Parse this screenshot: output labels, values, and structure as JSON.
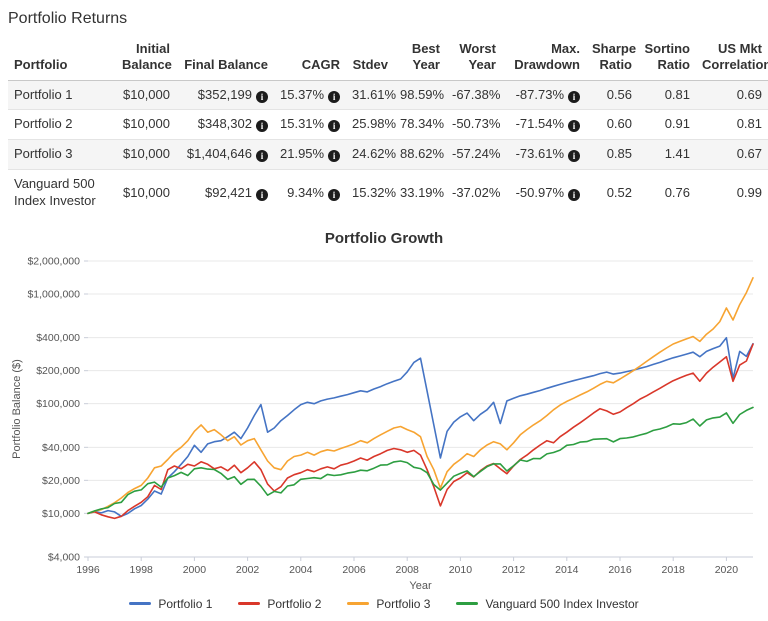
{
  "page": {
    "title": "Portfolio Returns"
  },
  "table": {
    "columns": [
      "Portfolio",
      "Initial Balance",
      "Final Balance",
      "CAGR",
      "Stdev",
      "Best Year",
      "Worst Year",
      "Max. Drawdown",
      "Sharpe Ratio",
      "Sortino Ratio",
      "US Mkt Correlation"
    ],
    "rows": [
      {
        "name": "Portfolio 1",
        "initial": "$10,000",
        "final": "$352,199",
        "cagr": "15.37%",
        "stdev": "31.61%",
        "best": "98.59%",
        "worst": "-67.38%",
        "maxdd": "-87.73%",
        "sharpe": "0.56",
        "sortino": "0.81",
        "uscorr": "0.69"
      },
      {
        "name": "Portfolio 2",
        "initial": "$10,000",
        "final": "$348,302",
        "cagr": "15.31%",
        "stdev": "25.98%",
        "best": "78.34%",
        "worst": "-50.73%",
        "maxdd": "-71.54%",
        "sharpe": "0.60",
        "sortino": "0.91",
        "uscorr": "0.81"
      },
      {
        "name": "Portfolio 3",
        "initial": "$10,000",
        "final": "$1,404,646",
        "cagr": "21.95%",
        "stdev": "24.62%",
        "best": "88.62%",
        "worst": "-57.24%",
        "maxdd": "-73.61%",
        "sharpe": "0.85",
        "sortino": "1.41",
        "uscorr": "0.67"
      },
      {
        "name": "Vanguard 500 Index Investor",
        "initial": "$10,000",
        "final": "$92,421",
        "cagr": "9.34%",
        "stdev": "15.32%",
        "best": "33.19%",
        "worst": "-37.02%",
        "maxdd": "-50.97%",
        "sharpe": "0.52",
        "sortino": "0.76",
        "uscorr": "0.99"
      }
    ],
    "info_icon": "i"
  },
  "chart_data": {
    "type": "line",
    "title": "Portfolio Growth",
    "xlabel": "Year",
    "ylabel": "Portfolio Balance ($)",
    "log_scale": true,
    "ylim": [
      4000,
      2000000
    ],
    "xlim": [
      1996,
      2021
    ],
    "x_start": 1996,
    "x_step": 0.25,
    "x_ticks": [
      1996,
      1998,
      2000,
      2002,
      2004,
      2006,
      2008,
      2010,
      2012,
      2014,
      2016,
      2018,
      2020
    ],
    "y_ticks": [
      {
        "v": 2000000,
        "label": "$2,000,000"
      },
      {
        "v": 1000000,
        "label": "$1,000,000"
      },
      {
        "v": 400000,
        "label": "$400,000"
      },
      {
        "v": 200000,
        "label": "$200,000"
      },
      {
        "v": 100000,
        "label": "$100,000"
      },
      {
        "v": 40000,
        "label": "$40,000"
      },
      {
        "v": 20000,
        "label": "$20,000"
      },
      {
        "v": 10000,
        "label": "$10,000"
      },
      {
        "v": 4000,
        "label": "$4,000"
      }
    ],
    "legend_position": "bottom",
    "grid": true,
    "series": [
      {
        "name": "Portfolio 1",
        "color": "#4574c4",
        "values": [
          10000,
          10400,
          10100,
          10600,
          10300,
          9400,
          10000,
          11000,
          11800,
          13500,
          16000,
          15000,
          21000,
          24000,
          28000,
          33000,
          41700,
          36000,
          43000,
          45000,
          46000,
          50000,
          55000,
          48000,
          60000,
          78000,
          98000,
          55000,
          60000,
          70000,
          78000,
          88000,
          98000,
          103000,
          100000,
          106000,
          110000,
          113000,
          117000,
          121000,
          126000,
          131000,
          128000,
          136000,
          143000,
          152000,
          160000,
          168000,
          195000,
          238000,
          260000,
          130000,
          64000,
          32000,
          56000,
          68000,
          76000,
          82000,
          70000,
          80000,
          88000,
          103000,
          66000,
          106000,
          112000,
          118000,
          122000,
          127000,
          132000,
          138000,
          144000,
          150000,
          156000,
          162000,
          168000,
          174000,
          180000,
          188000,
          194000,
          186000,
          190000,
          196000,
          202000,
          210000,
          218000,
          228000,
          238000,
          250000,
          262000,
          272000,
          283000,
          295000,
          268000,
          300000,
          318000,
          335000,
          400000,
          170000,
          300000,
          270000,
          352199
        ]
      },
      {
        "name": "Portfolio 2",
        "color": "#d9372a",
        "values": [
          10000,
          10300,
          9700,
          9300,
          9000,
          9400,
          10600,
          11600,
          12600,
          14200,
          18000,
          16500,
          25000,
          27000,
          25500,
          28000,
          27000,
          29500,
          28000,
          25500,
          26500,
          24500,
          27500,
          23500,
          26000,
          29500,
          25000,
          18500,
          16000,
          17500,
          21000,
          22500,
          23500,
          25000,
          24000,
          25500,
          26500,
          25500,
          27500,
          28500,
          30000,
          32000,
          30500,
          33000,
          35000,
          37500,
          39000,
          38000,
          36000,
          37500,
          34000,
          25000,
          17500,
          11700,
          16500,
          19500,
          21000,
          23500,
          21500,
          24500,
          27000,
          28500,
          25500,
          23000,
          27000,
          31000,
          34000,
          38000,
          42000,
          46000,
          44000,
          50000,
          55000,
          61000,
          67000,
          74000,
          82000,
          90000,
          86000,
          80000,
          84000,
          92000,
          100000,
          110000,
          118000,
          128000,
          138000,
          150000,
          162000,
          172000,
          182000,
          190000,
          160000,
          190000,
          215000,
          240000,
          268000,
          160000,
          225000,
          245000,
          348302
        ]
      },
      {
        "name": "Portfolio 3",
        "color": "#f7a432",
        "values": [
          10000,
          10500,
          10800,
          11600,
          12500,
          13800,
          15500,
          16800,
          18000,
          21000,
          26000,
          27000,
          31000,
          36000,
          40000,
          46000,
          56000,
          64000,
          55000,
          58000,
          52000,
          46000,
          50000,
          42000,
          46000,
          48000,
          38000,
          30000,
          26000,
          25000,
          30000,
          33000,
          34000,
          36000,
          34000,
          36500,
          38000,
          37000,
          39000,
          41000,
          43000,
          46000,
          44000,
          48000,
          52000,
          56000,
          60000,
          62000,
          58000,
          55000,
          50000,
          33000,
          25000,
          17000,
          24000,
          28000,
          31000,
          35000,
          33000,
          38000,
          42000,
          45000,
          43000,
          38000,
          44000,
          52000,
          58000,
          64000,
          70000,
          78000,
          88000,
          97000,
          105000,
          112000,
          120000,
          128000,
          138000,
          150000,
          160000,
          155000,
          168000,
          183000,
          200000,
          220000,
          243000,
          268000,
          295000,
          322000,
          350000,
          370000,
          390000,
          410000,
          370000,
          430000,
          480000,
          560000,
          745000,
          580000,
          800000,
          1030000,
          1404646
        ]
      },
      {
        "name": "Vanguard 500 Index Investor",
        "color": "#2d9e41",
        "values": [
          10000,
          10540,
          10990,
          11290,
          12290,
          12620,
          14830,
          15940,
          16370,
          18650,
          19270,
          17340,
          21030,
          22080,
          23630,
          22160,
          25460,
          26050,
          25340,
          25090,
          23130,
          20380,
          21580,
          18410,
          20380,
          20440,
          17700,
          14640,
          15870,
          15380,
          17750,
          18210,
          20430,
          20780,
          21130,
          20730,
          22640,
          22160,
          22470,
          23280,
          23770,
          24770,
          24420,
          25810,
          27540,
          27700,
          29450,
          30040,
          29050,
          26320,
          25610,
          23460,
          18320,
          16300,
          18890,
          21840,
          23150,
          24400,
          21620,
          24060,
          26660,
          28230,
          28260,
          24330,
          27200,
          30630,
          29770,
          31650,
          31520,
          34860,
          35870,
          37740,
          41700,
          42450,
          44660,
          45150,
          47360,
          47790,
          47930,
          44860,
          48000,
          48620,
          49840,
          51780,
          53750,
          57030,
          58800,
          61450,
          65510,
          65000,
          67210,
          72390,
          62620,
          71140,
          74200,
          75460,
          82330,
          66200,
          79770,
          86870,
          92421
        ]
      }
    ]
  }
}
